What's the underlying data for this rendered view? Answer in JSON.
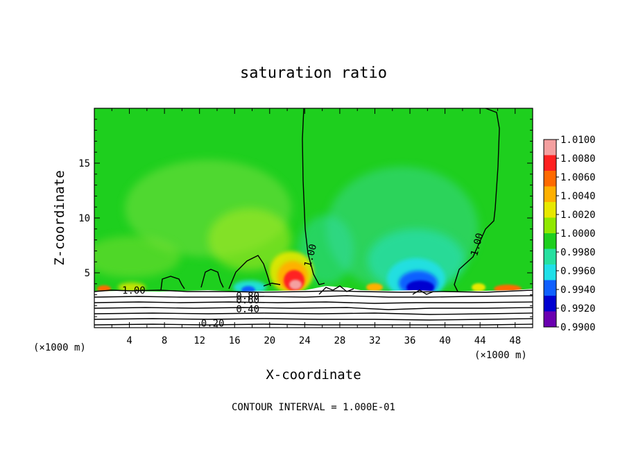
{
  "chart_data": {
    "type": "heatmap",
    "title": "saturation ratio",
    "xlabel": "X-coordinate",
    "ylabel": "Z-coordinate",
    "x_unit_label": "(×1000 m)",
    "z_unit_label": "(×1000 m)",
    "footnote": "CONTOUR INTERVAL = 1.000E-01",
    "xlim": [
      0,
      50
    ],
    "ylim": [
      0,
      20
    ],
    "x_ticks": [
      4,
      8,
      12,
      16,
      20,
      24,
      28,
      32,
      36,
      40,
      44,
      48
    ],
    "y_ticks": [
      5,
      10,
      15
    ],
    "background_value": 1.0,
    "colorbar": {
      "levels": [
        "1.0100",
        "1.0080",
        "1.0060",
        "1.0040",
        "1.0020",
        "1.0000",
        "0.9980",
        "0.9960",
        "0.9940",
        "0.9920",
        "0.9900"
      ],
      "colors": [
        "#f4a0a0",
        "#ff2020",
        "#ff6a00",
        "#ffb000",
        "#e8e800",
        "#90e800",
        "#1ecf1e",
        "#26e0a0",
        "#20e0e8",
        "#1060ff",
        "#0000d0",
        "#6a00b0"
      ]
    },
    "anomalies": [
      {
        "kind": "moist",
        "x": 22.5,
        "z": 4.6,
        "value": 1.008
      },
      {
        "kind": "dry",
        "x": 37.5,
        "z": 4.2,
        "value": 0.9925
      },
      {
        "kind": "dry",
        "x": 17.5,
        "z": 4.0,
        "value": 0.996
      },
      {
        "kind": "moist",
        "x": 47.0,
        "z": 3.6,
        "value": 1.006
      },
      {
        "kind": "moist",
        "x": 33.0,
        "z": 3.6,
        "value": 1.004
      }
    ],
    "contour_labels": [
      {
        "text": "1.00",
        "x": 4.5,
        "z": 3.1
      },
      {
        "text": "1.00",
        "x": 25.0,
        "z": 6.5
      },
      {
        "text": "1.00",
        "x": 44.0,
        "z": 7.5
      },
      {
        "text": "0.80",
        "x": 17.5,
        "z": 2.6
      },
      {
        "text": "0.60",
        "x": 17.5,
        "z": 2.2
      },
      {
        "text": "0.40",
        "x": 17.5,
        "z": 1.4
      },
      {
        "text": "0.20",
        "x": 13.5,
        "z": 0.1
      }
    ]
  }
}
